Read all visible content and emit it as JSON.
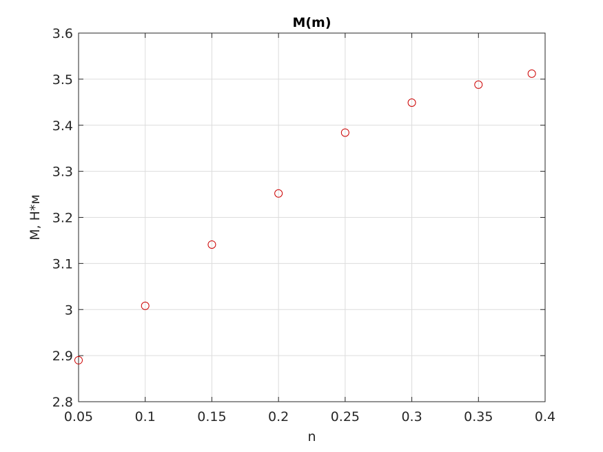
{
  "chart_data": {
    "type": "scatter",
    "title": "M(m)",
    "xlabel": "n",
    "ylabel": "M, Н*м",
    "xlim": [
      0.05,
      0.4
    ],
    "ylim": [
      2.8,
      3.6
    ],
    "xticks": [
      "0.05",
      "0.1",
      "0.15",
      "0.2",
      "0.25",
      "0.3",
      "0.35",
      "0.4"
    ],
    "yticks": [
      "2.8",
      "2.9",
      "3",
      "3.1",
      "3.2",
      "3.3",
      "3.4",
      "3.5",
      "3.6"
    ],
    "grid": true,
    "marker": "circle",
    "marker_color": "#cc0000",
    "series": [
      {
        "x": [
          0.05,
          0.1,
          0.15,
          0.2,
          0.25,
          0.3,
          0.35,
          0.39
        ],
        "y": [
          2.89,
          3.008,
          3.141,
          3.252,
          3.384,
          3.449,
          3.488,
          3.512
        ]
      }
    ]
  }
}
